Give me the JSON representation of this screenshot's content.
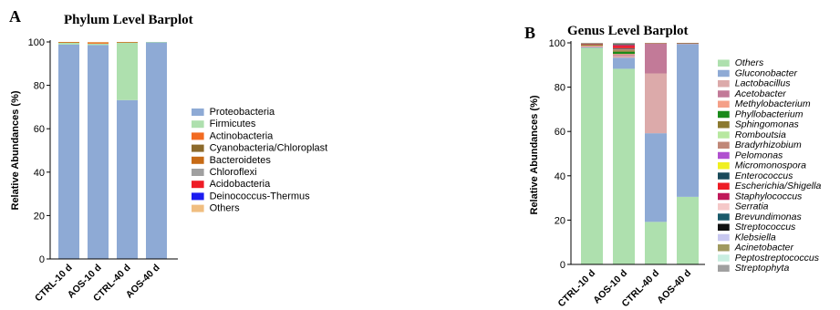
{
  "chart_data": [
    {
      "panel_label": "A",
      "title": "Phylum Level Barplot",
      "type": "bar",
      "stacked": true,
      "ylabel": "Relative Abundances (%)",
      "ylim": [
        0,
        100
      ],
      "yticks": [
        "0",
        "20",
        "40",
        "60",
        "80",
        "100"
      ],
      "categories": [
        "CTRL-10 d",
        "AOS-10 d",
        "CTRL-40 d",
        "AOS-40 d"
      ],
      "legend_position": "right",
      "series": [
        {
          "name": "Proteobacteria",
          "color": "#8eaad5",
          "values": [
            98.8,
            98.6,
            73.2,
            99.9
          ]
        },
        {
          "name": "Firmicutes",
          "color": "#aee0ae",
          "values": [
            1.0,
            0.6,
            26.7,
            0.1
          ]
        },
        {
          "name": "Actinobacteria",
          "color": "#f26b22",
          "values": [
            0.1,
            0.5,
            0.05,
            0
          ]
        },
        {
          "name": "Cyanobacteria/Chloroplast",
          "color": "#8c6a2c",
          "values": [
            0,
            0,
            0,
            0
          ]
        },
        {
          "name": "Bacteroidetes",
          "color": "#c76b16",
          "values": [
            0.1,
            0.2,
            0.05,
            0
          ]
        },
        {
          "name": "Chloroflexi",
          "color": "#a0a0a0",
          "values": [
            0,
            0,
            0,
            0
          ]
        },
        {
          "name": "Acidobacteria",
          "color": "#ee1c25",
          "values": [
            0,
            0,
            0,
            0
          ]
        },
        {
          "name": "Deinococcus-Thermus",
          "color": "#1c1cf0",
          "values": [
            0,
            0,
            0,
            0
          ]
        },
        {
          "name": "Others",
          "color": "#f0be80",
          "values": [
            0,
            0.1,
            0,
            0
          ]
        }
      ]
    },
    {
      "panel_label": "B",
      "title": "Genus Level Barplot",
      "type": "bar",
      "stacked": true,
      "ylabel": "Relative Abundances (%)",
      "ylim": [
        0,
        100
      ],
      "yticks": [
        "0",
        "20",
        "40",
        "60",
        "80",
        "100"
      ],
      "categories": [
        "CTRL-10 d",
        "AOS-10 d",
        "CTRL-40 d",
        "AOS-40 d"
      ],
      "legend_position": "right",
      "series": [
        {
          "name": "Others",
          "color": "#aee0ae",
          "values": [
            97.8,
            88.3,
            19.2,
            30.5
          ]
        },
        {
          "name": "Gluconobacter",
          "color": "#8eaad5",
          "values": [
            0.2,
            5.0,
            40.0,
            69.0
          ]
        },
        {
          "name": "Lactobacillus",
          "color": "#dcaaaa",
          "values": [
            0.3,
            0.8,
            27.0,
            0.2
          ]
        },
        {
          "name": "Acetobacter",
          "color": "#c27a98",
          "values": [
            0.1,
            0.5,
            13.5,
            0.1
          ]
        },
        {
          "name": "Methylobacterium",
          "color": "#f5a088",
          "values": [
            0.3,
            0.4,
            0,
            0
          ]
        },
        {
          "name": "Phyllobacterium",
          "color": "#1a8a1a",
          "values": [
            0,
            1.0,
            0,
            0
          ]
        },
        {
          "name": "Sphingomonas",
          "color": "#8c7a30",
          "values": [
            0.6,
            0.6,
            0.2,
            0.2
          ]
        },
        {
          "name": "Romboutsia",
          "color": "#b8e8a0",
          "values": [
            0,
            0,
            0,
            0
          ]
        },
        {
          "name": "Bradyrhizobium",
          "color": "#c08878",
          "values": [
            0.2,
            0.7,
            0.1,
            0
          ]
        },
        {
          "name": "Pelomonas",
          "color": "#b050d0",
          "values": [
            0,
            0,
            0,
            0
          ]
        },
        {
          "name": "Micromonospora",
          "color": "#f0f020",
          "values": [
            0,
            0,
            0,
            0
          ]
        },
        {
          "name": "Enterococcus",
          "color": "#1a4a5a",
          "values": [
            0,
            0.3,
            0,
            0
          ]
        },
        {
          "name": "Escherichia/Shigella",
          "color": "#ee1c25",
          "values": [
            0,
            1.0,
            0,
            0
          ]
        },
        {
          "name": "Staphylococcus",
          "color": "#c0185a",
          "values": [
            0.1,
            0.5,
            0,
            0
          ]
        },
        {
          "name": "Serratia",
          "color": "#f5c8c8",
          "values": [
            0,
            0,
            0,
            0
          ]
        },
        {
          "name": "Brevundimonas",
          "color": "#1a5a6a",
          "values": [
            0,
            0.3,
            0,
            0
          ]
        },
        {
          "name": "Streptococcus",
          "color": "#111111",
          "values": [
            0,
            0,
            0,
            0
          ]
        },
        {
          "name": "Klebsiella",
          "color": "#c8c8f0",
          "values": [
            0,
            0,
            0,
            0
          ]
        },
        {
          "name": "Acinetobacter",
          "color": "#a09a60",
          "values": [
            0.2,
            0.2,
            0,
            0
          ]
        },
        {
          "name": "Peptostreptococcus",
          "color": "#c8eee0",
          "values": [
            0,
            0,
            0,
            0
          ]
        },
        {
          "name": "Streptophyta",
          "color": "#a0a0a0",
          "values": [
            0.2,
            0.4,
            0,
            0
          ]
        }
      ]
    }
  ]
}
